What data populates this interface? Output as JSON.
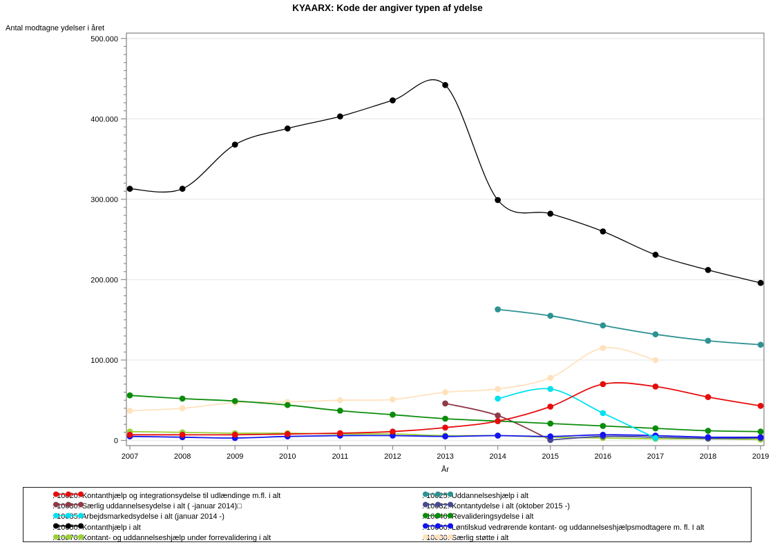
{
  "page": {
    "title": "KYAARX: Kode der angiver typen af ydelse"
  },
  "chart_data": {
    "type": "line",
    "title": "KYAARX: Kode der angiver typen af ydelse",
    "xlabel": "År",
    "ylabel": "Antal modtagne ydelser i året",
    "x_ticks": [
      2007,
      2008,
      2009,
      2010,
      2011,
      2012,
      2013,
      2014,
      2015,
      2016,
      2017,
      2018,
      2019
    ],
    "ylim": [
      0,
      500000
    ],
    "y_major_step": 100000,
    "y_minor_step": 10000,
    "y_tick_labels": [
      "0",
      "100.000",
      "200.000",
      "300.000",
      "400.000",
      "500.000"
    ],
    "grid": "horizontal-major-lightgray",
    "marker": "filled-circle",
    "smooth": true,
    "frame_color": "#8c8c8c",
    "grid_color": "#ebebeb",
    "series": [
      {
        "id": "10020",
        "label": ". 10020: Kontanthjælp og integrationsydelse til udlændinge m.fl. i alt",
        "color": "#e60c0c",
        "x": [
          2007,
          2008,
          2009,
          2010,
          2011,
          2012,
          2013,
          2014,
          2015,
          2016,
          2017,
          2018,
          2019
        ],
        "y": [
          7000,
          7000,
          7000,
          8000,
          9000,
          11000,
          16000,
          24000,
          42000,
          70000,
          67000,
          54000,
          43000
        ]
      },
      {
        "id": "10025",
        "label": ". 10025: Uddannelseshjælp i alt",
        "color": "#2e9292",
        "x": [
          2014,
          2015,
          2016,
          2017,
          2018,
          2019
        ],
        "y": [
          163000,
          155000,
          143000,
          132000,
          124000,
          119000
        ]
      },
      {
        "id": "10030",
        "label": ". 10030: Særlig uddannelsesydelse i alt ( -januar 2014)□",
        "color": "#8e3a49",
        "x": [
          2013,
          2014,
          2015
        ],
        "y": [
          46000,
          31000,
          600
        ]
      },
      {
        "id": "10032",
        "label": ". 10032: Kontantydelse i alt (oktober 2015 -)",
        "color": "#474a8f",
        "x": [
          2015,
          2016,
          2017,
          2018,
          2019
        ],
        "y": [
          600,
          5000,
          4000,
          2500,
          3000
        ]
      },
      {
        "id": "10035",
        "label": ". 10035: Arbejdsmarkedsydelse i alt (januar 2014 -)",
        "color": "#00e1ef",
        "x": [
          2014,
          2015,
          2016,
          2017
        ],
        "y": [
          52000,
          64000,
          34000,
          3000
        ]
      },
      {
        "id": "10040",
        "label": ". 10040: Revalideringsydelse i alt",
        "color": "#0a8c0a",
        "x": [
          2007,
          2008,
          2009,
          2010,
          2011,
          2012,
          2013,
          2014,
          2015,
          2016,
          2017,
          2018,
          2019
        ],
        "y": [
          56000,
          52000,
          49000,
          44000,
          37000,
          32000,
          27000,
          24000,
          21000,
          18000,
          15000,
          12000,
          11000
        ]
      },
      {
        "id": "10050",
        "label": ". 10050: Kontanthjælp i alt",
        "color": "#000000",
        "x": [
          2007,
          2008,
          2009,
          2010,
          2011,
          2012,
          2013,
          2014,
          2015,
          2016,
          2017,
          2018,
          2019
        ],
        "y": [
          313000,
          313000,
          368000,
          388000,
          403000,
          423000,
          442000,
          299000,
          282000,
          260000,
          231000,
          212000,
          196000
        ]
      },
      {
        "id": "10060",
        "label": ". 10060: Løntilskud vedrørende kontant- og uddannelseshjælpsmodtagere m. fl. I alt",
        "color": "#1313f0",
        "x": [
          2007,
          2008,
          2009,
          2010,
          2011,
          2012,
          2013,
          2014,
          2015,
          2016,
          2017,
          2018,
          2019
        ],
        "y": [
          5000,
          4000,
          3000,
          5000,
          6000,
          6000,
          5000,
          6000,
          5000,
          7000,
          6000,
          4000,
          4000
        ]
      },
      {
        "id": "10070",
        "label": ". 10070: Kontant- og uddannelseshjælp under forrevalidering i alt",
        "color": "#9bd138",
        "x": [
          2007,
          2008,
          2009,
          2010,
          2011,
          2012,
          2013,
          2014,
          2015,
          2016,
          2017,
          2018,
          2019
        ],
        "y": [
          11000,
          10000,
          9000,
          9000,
          8000,
          8000,
          6000,
          6000,
          4000,
          3000,
          2000,
          2000,
          1000
        ]
      },
      {
        "id": "10080",
        "label": ". 10080: Særlig støtte i alt",
        "color": "#ffe2bd",
        "x": [
          2007,
          2008,
          2009,
          2010,
          2011,
          2012,
          2013,
          2014,
          2015,
          2016,
          2017
        ],
        "y": [
          37000,
          40000,
          47000,
          48000,
          50000,
          51000,
          60000,
          64000,
          78000,
          115000,
          100000
        ]
      }
    ],
    "draw_order": [
      "10080",
      "10030",
      "10070",
      "10032",
      "10060",
      "10040",
      "10025",
      "10035",
      "10020",
      "10050"
    ],
    "legend_position": "bottom-boxed-two-columns",
    "legend_columns": [
      [
        "10020",
        "10030",
        "10035",
        "10050",
        "10070"
      ],
      [
        "10025",
        "10032",
        "10040",
        "10060",
        "10080"
      ]
    ]
  }
}
